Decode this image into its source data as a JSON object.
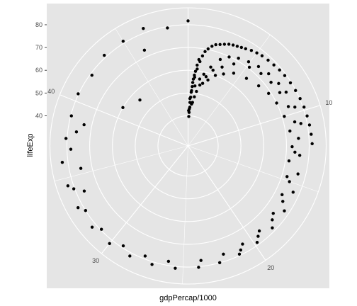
{
  "chart_data": {
    "type": "scatter",
    "coord": "polar",
    "theta_variable": "x",
    "xlabel": "gdpPercap/1000",
    "ylabel": "lifeExp",
    "x_period": 49.36,
    "x_ticks": [
      10,
      20,
      30,
      40
    ],
    "y_ticks": [
      40,
      50,
      60,
      70,
      80
    ],
    "y_range": [
      29.8,
      82.6
    ],
    "grid": true,
    "colors": {
      "panel": "#e5e5e5",
      "grid": "#ffffff",
      "point": "#000000",
      "text": "#4d4d4d"
    },
    "points": [
      {
        "x": 0.19,
        "y": 39.7
      },
      {
        "x": 0.24,
        "y": 41.5
      },
      {
        "x": 0.27,
        "y": 43.1
      },
      {
        "x": 0.33,
        "y": 45.9
      },
      {
        "x": 0.42,
        "y": 48.2
      },
      {
        "x": 0.5,
        "y": 51.1
      },
      {
        "x": 0.55,
        "y": 52.9
      },
      {
        "x": 0.62,
        "y": 56.2
      },
      {
        "x": 0.7,
        "y": 58.0
      },
      {
        "x": 0.78,
        "y": 59.7
      },
      {
        "x": 0.88,
        "y": 62.5
      },
      {
        "x": 0.98,
        "y": 65.0
      },
      {
        "x": 0.12,
        "y": 42.3
      },
      {
        "x": 0.3,
        "y": 47.6
      },
      {
        "x": 0.46,
        "y": 50.4
      },
      {
        "x": 0.58,
        "y": 54.7
      },
      {
        "x": 0.75,
        "y": 57.1
      },
      {
        "x": 0.93,
        "y": 60.8
      },
      {
        "x": 1.1,
        "y": 64.2
      },
      {
        "x": 1.25,
        "y": 66.8
      },
      {
        "x": 1.4,
        "y": 68.9
      },
      {
        "x": 1.6,
        "y": 70.3
      },
      {
        "x": 1.85,
        "y": 71.8
      },
      {
        "x": 2.1,
        "y": 72.9
      },
      {
        "x": 2.4,
        "y": 73.5
      },
      {
        "x": 2.7,
        "y": 74.2
      },
      {
        "x": 3.0,
        "y": 74.9
      },
      {
        "x": 3.3,
        "y": 75.3
      },
      {
        "x": 3.6,
        "y": 75.6
      },
      {
        "x": 3.9,
        "y": 76.0
      },
      {
        "x": 4.2,
        "y": 76.4
      },
      {
        "x": 4.6,
        "y": 77.1
      },
      {
        "x": 5.0,
        "y": 77.6
      },
      {
        "x": 5.4,
        "y": 78.0
      },
      {
        "x": 5.9,
        "y": 78.3
      },
      {
        "x": 6.4,
        "y": 78.6
      },
      {
        "x": 6.9,
        "y": 79.0
      },
      {
        "x": 7.4,
        "y": 79.3
      },
      {
        "x": 8.0,
        "y": 79.6
      },
      {
        "x": 8.6,
        "y": 79.9
      },
      {
        "x": 9.2,
        "y": 80.2
      },
      {
        "x": 9.8,
        "y": 80.5
      },
      {
        "x": 10.4,
        "y": 80.7
      },
      {
        "x": 11.0,
        "y": 80.9
      },
      {
        "x": 11.6,
        "y": 81.1
      },
      {
        "x": 12.2,
        "y": 81.3
      },
      {
        "x": 1.0,
        "y": 48.5
      },
      {
        "x": 1.5,
        "y": 54.0
      },
      {
        "x": 2.0,
        "y": 58.2
      },
      {
        "x": 2.5,
        "y": 61.8
      },
      {
        "x": 3.2,
        "y": 64.5
      },
      {
        "x": 4.0,
        "y": 68.0
      },
      {
        "x": 5.2,
        "y": 70.6
      },
      {
        "x": 6.2,
        "y": 71.9
      },
      {
        "x": 7.2,
        "y": 72.7
      },
      {
        "x": 8.2,
        "y": 73.4
      },
      {
        "x": 9.4,
        "y": 74.1
      },
      {
        "x": 10.6,
        "y": 74.8
      },
      {
        "x": 11.8,
        "y": 75.4
      },
      {
        "x": 13.0,
        "y": 76.0
      },
      {
        "x": 14.3,
        "y": 76.6
      },
      {
        "x": 15.6,
        "y": 77.2
      },
      {
        "x": 17.0,
        "y": 77.8
      },
      {
        "x": 18.4,
        "y": 78.4
      },
      {
        "x": 19.8,
        "y": 78.9
      },
      {
        "x": 21.2,
        "y": 79.4
      },
      {
        "x": 22.6,
        "y": 79.9
      },
      {
        "x": 24.0,
        "y": 80.3
      },
      {
        "x": 25.5,
        "y": 80.8
      },
      {
        "x": 27.0,
        "y": 81.2
      },
      {
        "x": 28.5,
        "y": 81.5
      },
      {
        "x": 30.0,
        "y": 81.8
      },
      {
        "x": 31.5,
        "y": 82.0
      },
      {
        "x": 33.0,
        "y": 82.2
      },
      {
        "x": 34.5,
        "y": 82.4
      },
      {
        "x": 36.0,
        "y": 82.5
      },
      {
        "x": 37.5,
        "y": 80.5
      },
      {
        "x": 39.0,
        "y": 79.7
      },
      {
        "x": 40.5,
        "y": 80.2
      },
      {
        "x": 42.0,
        "y": 79.2
      },
      {
        "x": 43.5,
        "y": 81.0
      },
      {
        "x": 45.0,
        "y": 80.9
      },
      {
        "x": 46.5,
        "y": 82.0
      },
      {
        "x": 48.0,
        "y": 79.4
      },
      {
        "x": 49.36,
        "y": 81.7
      },
      {
        "x": 36.8,
        "y": 78.3
      },
      {
        "x": 38.0,
        "y": 76.2
      },
      {
        "x": 38.6,
        "y": 73.4
      },
      {
        "x": 35.4,
        "y": 74.9
      },
      {
        "x": 33.8,
        "y": 76.5
      },
      {
        "x": 12.8,
        "y": 73.8
      },
      {
        "x": 13.5,
        "y": 71.6
      },
      {
        "x": 14.7,
        "y": 72.3
      },
      {
        "x": 16.1,
        "y": 73.3
      },
      {
        "x": 17.6,
        "y": 74.5
      },
      {
        "x": 19.2,
        "y": 75.5
      },
      {
        "x": 20.7,
        "y": 76.1
      },
      {
        "x": 22.2,
        "y": 76.8
      },
      {
        "x": 23.8,
        "y": 77.4
      },
      {
        "x": 26.0,
        "y": 78.2
      },
      {
        "x": 27.6,
        "y": 78.7
      },
      {
        "x": 29.2,
        "y": 79.1
      },
      {
        "x": 31.0,
        "y": 79.6
      },
      {
        "x": 32.6,
        "y": 80.0
      },
      {
        "x": 34.2,
        "y": 80.4
      },
      {
        "x": 0.8,
        "y": 46.0
      },
      {
        "x": 1.2,
        "y": 51.0
      },
      {
        "x": 1.8,
        "y": 55.0
      },
      {
        "x": 2.3,
        "y": 57.0
      },
      {
        "x": 2.9,
        "y": 60.0
      },
      {
        "x": 3.6,
        "y": 62.0
      },
      {
        "x": 4.4,
        "y": 64.5
      },
      {
        "x": 5.6,
        "y": 66.0
      },
      {
        "x": 6.8,
        "y": 67.5
      },
      {
        "x": 7.8,
        "y": 69.0
      },
      {
        "x": 8.8,
        "y": 70.0
      },
      {
        "x": 10.0,
        "y": 71.0
      },
      {
        "x": 11.2,
        "y": 72.0
      },
      {
        "x": 12.4,
        "y": 72.5
      },
      {
        "x": 0.35,
        "y": 43.8
      },
      {
        "x": 0.65,
        "y": 45.2
      },
      {
        "x": 0.9,
        "y": 53.3
      },
      {
        "x": 1.35,
        "y": 56.6
      },
      {
        "x": 1.7,
        "y": 59.0
      },
      {
        "x": 2.2,
        "y": 62.8
      },
      {
        "x": 2.8,
        "y": 67.3
      },
      {
        "x": 3.4,
        "y": 69.8
      },
      {
        "x": 4.1,
        "y": 71.2
      },
      {
        "x": 4.9,
        "y": 72.3
      },
      {
        "x": 5.7,
        "y": 73.4
      },
      {
        "x": 6.6,
        "y": 74.3
      },
      {
        "x": 7.6,
        "y": 75.1
      },
      {
        "x": 8.4,
        "y": 75.9
      },
      {
        "x": 9.6,
        "y": 76.7
      },
      {
        "x": 10.8,
        "y": 77.3
      },
      {
        "x": 15.0,
        "y": 74.0
      },
      {
        "x": 16.5,
        "y": 75.0
      },
      {
        "x": 18.0,
        "y": 76.0
      },
      {
        "x": 19.5,
        "y": 77.0
      },
      {
        "x": 21.0,
        "y": 78.0
      },
      {
        "x": 43.0,
        "y": 56.0
      },
      {
        "x": 41.2,
        "y": 60.0
      },
      {
        "x": 46.0,
        "y": 73.0
      }
    ]
  }
}
